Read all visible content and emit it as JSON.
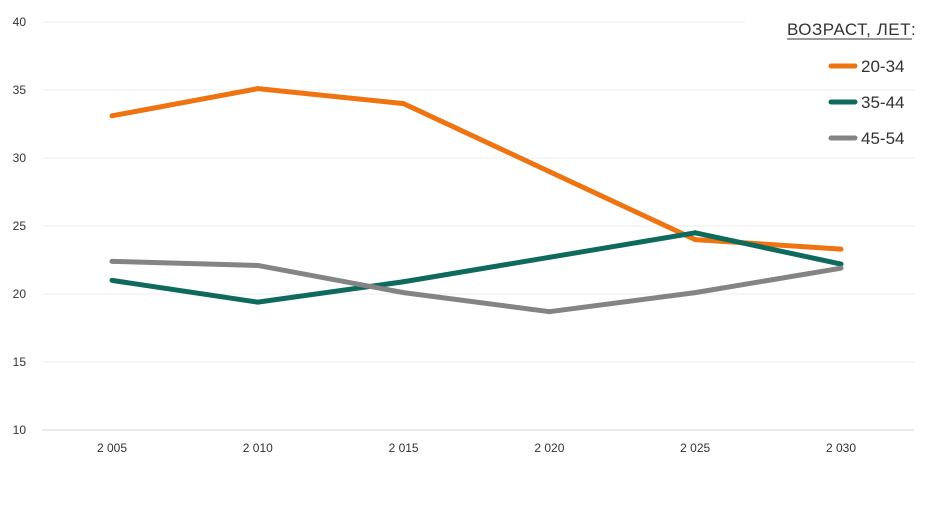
{
  "chart_data": {
    "type": "line",
    "title": "",
    "xlabel": "",
    "ylabel": "",
    "categories": [
      "2 005",
      "2 010",
      "2 015",
      "2 020",
      "2 025",
      "2 030"
    ],
    "ylim": [
      10,
      40
    ],
    "yticks": [
      10,
      15,
      20,
      25,
      30,
      35,
      40
    ],
    "grid": true,
    "legend": {
      "title": "ВОЗРАСТ, ЛЕТ:",
      "placement": "top-right"
    },
    "series": [
      {
        "name": "20-34",
        "color": "#EE7412",
        "values": [
          33.1,
          35.1,
          34.0,
          29.0,
          24.0,
          23.3
        ]
      },
      {
        "name": "35-44",
        "color": "#0F6A5E",
        "values": [
          21.0,
          19.4,
          20.9,
          22.7,
          24.5,
          22.2
        ]
      },
      {
        "name": "45-54",
        "color": "#848484",
        "values": [
          22.4,
          22.1,
          20.1,
          18.7,
          20.1,
          21.9
        ]
      }
    ]
  }
}
